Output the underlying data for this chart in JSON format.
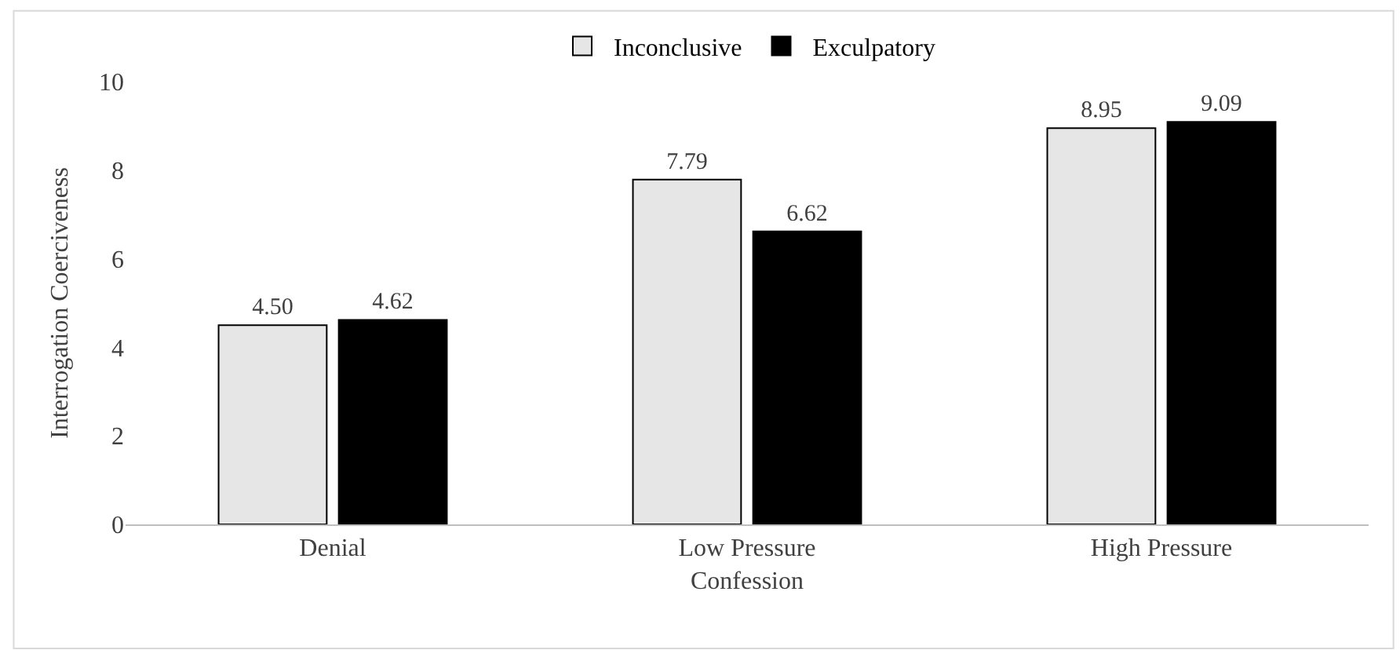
{
  "chart_data": {
    "type": "bar",
    "ylabel": "Interrogation Coerciveness",
    "categories": [
      "Denial",
      "Low Pressure\nConfession",
      "High Pressure"
    ],
    "series": [
      {
        "name": "Inconclusive",
        "color": "#e7e6e6",
        "values": [
          4.5,
          7.79,
          8.95
        ],
        "value_labels": [
          "4.50",
          "7.79",
          "8.95"
        ]
      },
      {
        "name": "Exculpatory",
        "color": "#000000",
        "values": [
          4.62,
          6.62,
          9.09
        ],
        "value_labels": [
          "4.62",
          "6.62",
          "9.09"
        ]
      }
    ],
    "ylim": [
      0,
      10
    ],
    "yticks": [
      0,
      2,
      4,
      6,
      8,
      10
    ],
    "legend": "top"
  }
}
